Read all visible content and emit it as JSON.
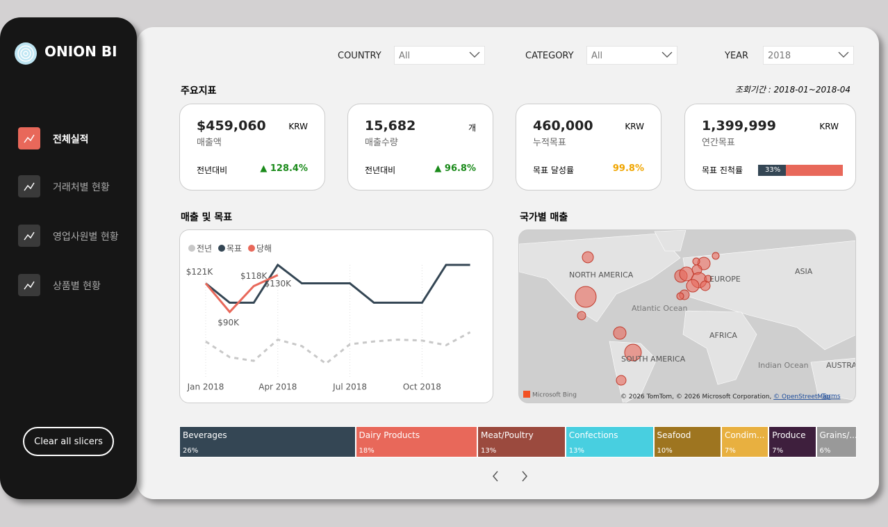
{
  "sidebar": {
    "brand": "ONION BI",
    "nav": [
      "전체실적",
      "거래처별 현황",
      "영업사원별 현황",
      "상품별 현황"
    ],
    "clear_button": "Clear all slicers"
  },
  "filters": [
    {
      "label": "COUNTRY",
      "value": "All"
    },
    {
      "label": "CATEGORY",
      "value": "All"
    },
    {
      "label": "YEAR",
      "value": "2018"
    }
  ],
  "kpi_section": {
    "title": "주요지표",
    "period": "조회기간 : 2018-01~2018-04",
    "cards": [
      {
        "value": "$459,060",
        "unit": "KRW",
        "label": "매출액",
        "compare_label": "전년대비",
        "compare": "▲ 128.4%",
        "compare_color": "#1a8a1a"
      },
      {
        "value": "15,682",
        "unit": "개",
        "label": "매출수량",
        "compare_label": "전년대비",
        "compare": "▲ 96.8%",
        "compare_color": "#1a8a1a"
      },
      {
        "value": "460,000",
        "unit": "KRW",
        "label": "누적목표",
        "compare_label": "목표 달성률",
        "compare": "99.8%",
        "compare_color": "#f0a500"
      },
      {
        "value": "1,399,999",
        "unit": "KRW",
        "label": "연간목표",
        "compare_label": "목표 진척률",
        "progress": {
          "value": 33,
          "label": "33%"
        }
      }
    ]
  },
  "chart_data": {
    "type": "line",
    "title": "매출 및 목표",
    "categories": [
      "Jan 2018",
      null,
      null,
      "Apr 2018",
      null,
      null,
      "Jul 2018",
      null,
      null,
      "Oct 2018",
      null,
      null
    ],
    "series": [
      {
        "name": "전년",
        "color": "#c8c8c8",
        "dashed": true,
        "values": [
          58,
          41,
          37,
          60,
          53,
          34,
          55,
          58,
          60,
          59,
          54,
          68
        ]
      },
      {
        "name": "목표",
        "color": "#344654",
        "values": [
          121,
          100,
          100,
          141,
          121,
          121,
          121,
          100,
          100,
          100,
          141,
          141
        ]
      },
      {
        "name": "당해",
        "color": "#e8685a",
        "values": [
          121,
          90,
          118,
          130,
          null,
          null,
          null,
          null,
          null,
          null,
          null,
          null
        ],
        "value_labels": [
          "$121K",
          "$90K",
          "$118K",
          "$130K",
          null,
          null,
          null,
          null,
          null,
          null,
          null,
          null
        ]
      }
    ]
  },
  "map": {
    "title": "국가별 매출",
    "labels": [
      "NORTH AMERICA",
      "Atlantic Ocean",
      "EUROPE",
      "ASIA",
      "AFRICA",
      "SOUTH AMERICA",
      "Indian Ocean",
      "AUSTRAL"
    ],
    "logo": "Microsoft Bing",
    "copyright": "© 2026 TomTom, © 2026 Microsoft Corporation, ",
    "osm": "© OpenStreetMap",
    "terms": "Terms"
  },
  "treemap": {
    "items": [
      {
        "name": "Beverages",
        "value": 26,
        "value_label": "26%",
        "color": "#344654"
      },
      {
        "name": "Dairy Products",
        "value": 18,
        "value_label": "18%",
        "color": "#e8685a"
      },
      {
        "name": "Meat/Poultry",
        "value": 13,
        "value_label": "13%",
        "color": "#9b4a3e"
      },
      {
        "name": "Confections",
        "value": 13,
        "value_label": "13%",
        "color": "#48cfe0"
      },
      {
        "name": "Seafood",
        "value": 10,
        "value_label": "10%",
        "color": "#9e7520"
      },
      {
        "name": "Condim...",
        "value": 7,
        "value_label": "7%",
        "color": "#e8b040"
      },
      {
        "name": "Produce",
        "value": 7,
        "value_label": "7%",
        "color": "#3e1f3d"
      },
      {
        "name": "Grains/...",
        "value": 6,
        "value_label": "6%",
        "color": "#999999"
      }
    ]
  }
}
